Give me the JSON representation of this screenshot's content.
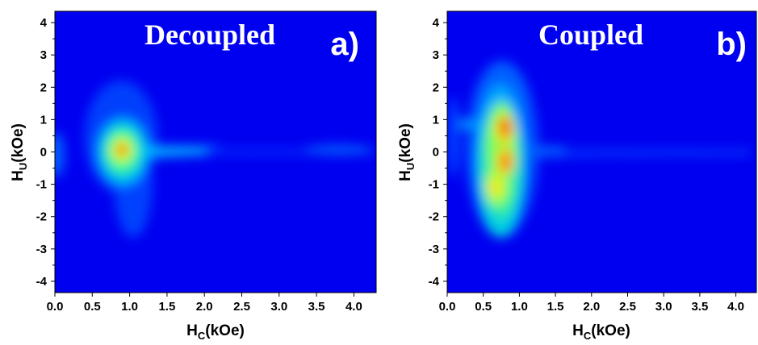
{
  "chart_data": [
    {
      "type": "heatmap",
      "title": "Decoupled",
      "panel_label": "a)",
      "xlabel": {
        "main": "H",
        "sub": "C",
        "tail": "(kOe)"
      },
      "ylabel": {
        "main": "H",
        "sub": "U",
        "tail": "(kOe)"
      },
      "xlim": [
        0.0,
        4.3
      ],
      "ylim": [
        -4.35,
        4.35
      ],
      "xticks": [
        "0.0",
        "0.5",
        "1.0",
        "1.5",
        "2.0",
        "2.5",
        "3.0",
        "3.5",
        "4.0"
      ],
      "yticks": [
        "4",
        "3",
        "2",
        "1",
        "0",
        "-1",
        "-2",
        "-3",
        "-4"
      ],
      "colormap": [
        "#0000f0",
        "#0050ff",
        "#00b0ff",
        "#00e6c8",
        "#60ff70",
        "#d8ff00",
        "#ff8000",
        "#e00000"
      ],
      "background_color": "#0000f0",
      "features": [
        {
          "hc": 0.87,
          "hu": 0.05,
          "intensity": 1.0
        },
        {
          "hc": 1.0,
          "hu": -0.8,
          "intensity": 0.35
        },
        {
          "hc": 1.6,
          "hu": 0.0,
          "intensity": 0.3
        },
        {
          "hc": 3.7,
          "hu": 0.05,
          "intensity": 0.15
        },
        {
          "hc": 0.05,
          "hu": -0.2,
          "intensity": 0.2
        }
      ]
    },
    {
      "type": "heatmap",
      "title": "Coupled",
      "panel_label": "b)",
      "xlabel": {
        "main": "H",
        "sub": "C",
        "tail": "(kOe)"
      },
      "ylabel": {
        "main": "H",
        "sub": "U",
        "tail": "(kOe)"
      },
      "xlim": [
        0.0,
        4.3
      ],
      "ylim": [
        -4.35,
        4.35
      ],
      "xticks": [
        "0.0",
        "0.5",
        "1.0",
        "1.5",
        "2.0",
        "2.5",
        "3.0",
        "3.5",
        "4.0"
      ],
      "yticks": [
        "4",
        "3",
        "2",
        "1",
        "0",
        "-1",
        "-2",
        "-3",
        "-4"
      ],
      "colormap": [
        "#0000f0",
        "#0050ff",
        "#00b0ff",
        "#00e6c8",
        "#60ff70",
        "#d8ff00",
        "#ff8000",
        "#e00000"
      ],
      "background_color": "#0000f0",
      "features": [
        {
          "hc": 0.8,
          "hu": 0.7,
          "intensity": 1.0
        },
        {
          "hc": 0.8,
          "hu": -0.4,
          "intensity": 0.95
        },
        {
          "hc": 0.7,
          "hu": -1.2,
          "intensity": 0.7
        },
        {
          "hc": 0.3,
          "hu": 0.85,
          "intensity": 0.35
        },
        {
          "hc": 2.5,
          "hu": 0.0,
          "intensity": 0.18
        },
        {
          "hc": 0.05,
          "hu": 0.3,
          "intensity": 0.2
        }
      ]
    }
  ]
}
